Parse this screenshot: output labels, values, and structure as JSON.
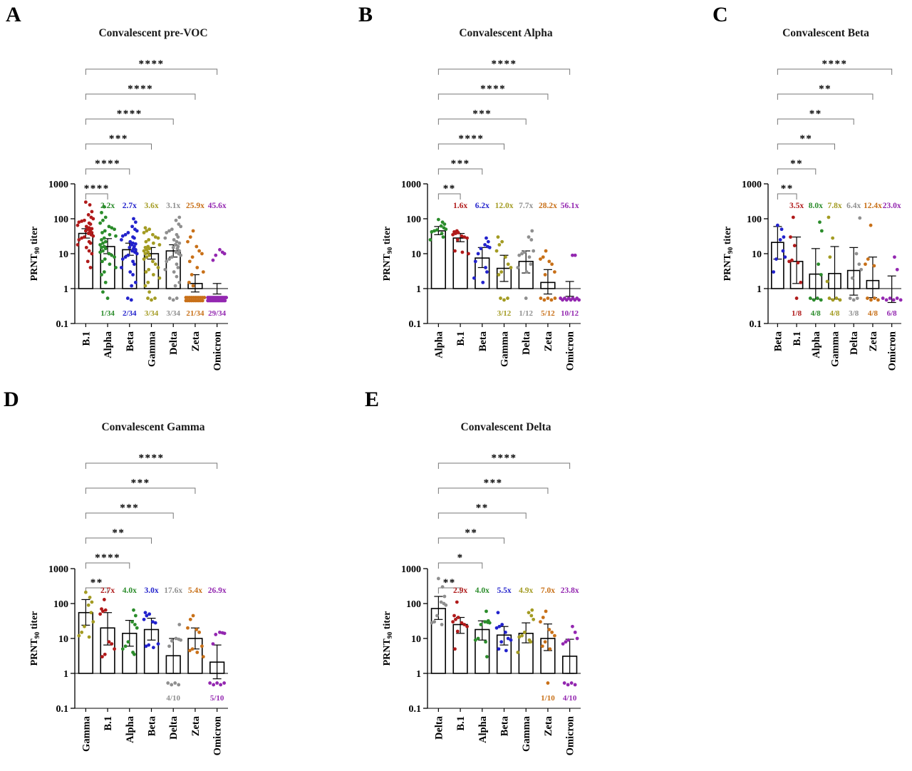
{
  "colors": {
    "B.1": "#b01a1a",
    "Alpha": "#2b8c2b",
    "Beta": "#2222cc",
    "Gamma": "#a39b22",
    "Delta": "#8f8f8f",
    "Zeta": "#c87018",
    "Omicron": "#9327b0",
    "bracket": "#777777",
    "axis": "#000000"
  },
  "ylabel": {
    "prefix": "PRNT",
    "sub": "90",
    "suffix": " titer"
  },
  "chart_data": [
    {
      "panel_label": "A",
      "title": "Convalescent pre-VOC",
      "type": "bar",
      "yscale": "log10",
      "ylim": [
        0.1,
        1000
      ],
      "yticks": [
        "1000",
        "100",
        "10",
        "1",
        "0.1"
      ],
      "n_sera": 34,
      "categories": [
        "B.1",
        "Alpha",
        "Beta",
        "Gamma",
        "Delta",
        "Zeta",
        "Omicron"
      ],
      "bar_means": [
        38,
        16,
        13,
        10,
        12,
        1.4,
        1.0
      ],
      "err_low": [
        28,
        10,
        9,
        7,
        8,
        0.8,
        0.7
      ],
      "err_high": [
        52,
        27,
        20,
        15,
        18,
        2.5,
        1.4
      ],
      "fold_change": [
        "",
        "2.2x",
        "2.7x",
        "3.6x",
        "3.1x",
        "25.9x",
        "45.6x"
      ],
      "below_detection": [
        "",
        "1/34",
        "2/34",
        "3/34",
        "3/34",
        "21/34",
        "29/34"
      ],
      "significance_bottom_to_top": [
        "****",
        "****",
        "***",
        "****",
        "****",
        "****"
      ],
      "points": [
        [
          300,
          250,
          160,
          130,
          110,
          100,
          90,
          85,
          80,
          75,
          70,
          65,
          60,
          55,
          52,
          50,
          48,
          45,
          42,
          40,
          38,
          35,
          32,
          30,
          28,
          25,
          22,
          20,
          18,
          15,
          12,
          10,
          6,
          4
        ],
        [
          220,
          150,
          110,
          90,
          75,
          60,
          55,
          50,
          45,
          40,
          35,
          32,
          28,
          25,
          22,
          20,
          18,
          16,
          15,
          14,
          12,
          11,
          10,
          9,
          8,
          7,
          6,
          5,
          4,
          3,
          2.5,
          1.5,
          0.8,
          0.5
        ],
        [
          100,
          80,
          60,
          50,
          45,
          40,
          35,
          32,
          30,
          28,
          25,
          22,
          20,
          19,
          18,
          16,
          15,
          14,
          13,
          12,
          11,
          10,
          9,
          8,
          7,
          6,
          5,
          4,
          3,
          2.5,
          1.5,
          1.2,
          0.5,
          0.5
        ],
        [
          55,
          50,
          45,
          40,
          35,
          30,
          28,
          25,
          22,
          20,
          18,
          16,
          15,
          14,
          13,
          12,
          11,
          10,
          9,
          8,
          7,
          6,
          5,
          4,
          3.5,
          3,
          2.5,
          2,
          1.5,
          1.2,
          0.8,
          0.5,
          0.5,
          0.5
        ],
        [
          110,
          90,
          70,
          60,
          50,
          45,
          40,
          35,
          30,
          28,
          25,
          22,
          20,
          18,
          16,
          15,
          14,
          12,
          11,
          10,
          9,
          8,
          7,
          6,
          5,
          4,
          3.5,
          3,
          2.2,
          1.5,
          1.2,
          0.5,
          0.5,
          0.5
        ],
        [
          45,
          30,
          22,
          16,
          12,
          10,
          8,
          6,
          4,
          3,
          2.5,
          1.5,
          1.2,
          0.5,
          0.5,
          0.5,
          0.5,
          0.5,
          0.5,
          0.5,
          0.5,
          0.5,
          0.5,
          0.5,
          0.5,
          0.5,
          0.5,
          0.5,
          0.5,
          0.5,
          0.5,
          0.5,
          0.5,
          0.5
        ],
        [
          13,
          11,
          10,
          9,
          6.5,
          0.5,
          0.5,
          0.5,
          0.5,
          0.5,
          0.5,
          0.5,
          0.5,
          0.5,
          0.5,
          0.5,
          0.5,
          0.5,
          0.5,
          0.5,
          0.5,
          0.5,
          0.5,
          0.5,
          0.5,
          0.5,
          0.5,
          0.5,
          0.5,
          0.5,
          0.5,
          0.5,
          0.5,
          0.5
        ]
      ]
    },
    {
      "panel_label": "B",
      "title": "Convalescent Alpha",
      "type": "bar",
      "yscale": "log10",
      "ylim": [
        0.1,
        1000
      ],
      "yticks": [
        "1000",
        "100",
        "10",
        "1",
        "0.1"
      ],
      "n_sera": 12,
      "categories": [
        "Alpha",
        "B.1",
        "Beta",
        "Gamma",
        "Delta",
        "Zeta",
        "Omicron"
      ],
      "bar_means": [
        45,
        28,
        7.5,
        3.8,
        6,
        1.5,
        1.0
      ],
      "err_low": [
        35,
        22,
        4,
        1.6,
        2.8,
        0.7,
        0.6
      ],
      "err_high": [
        60,
        38,
        15,
        9,
        12,
        3.5,
        1.6
      ],
      "fold_change": [
        "",
        "1.6x",
        "6.2x",
        "12.0x",
        "7.7x",
        "28.2x",
        "56.1x"
      ],
      "below_detection": [
        "",
        "",
        "",
        "3/12",
        "1/12",
        "5/12",
        "10/12"
      ],
      "significance_bottom_to_top": [
        "**",
        "***",
        "****",
        "***",
        "****",
        "****"
      ],
      "points": [
        [
          95,
          80,
          70,
          62,
          55,
          50,
          48,
          45,
          42,
          38,
          30,
          25
        ],
        [
          45,
          42,
          40,
          38,
          35,
          32,
          30,
          28,
          25,
          12,
          11,
          10
        ],
        [
          28,
          22,
          18,
          16,
          15,
          14,
          10,
          6,
          4,
          3,
          2,
          1.5
        ],
        [
          30,
          22,
          18,
          12,
          8,
          5,
          4,
          3,
          2.5,
          0.5,
          0.5,
          0.5
        ],
        [
          45,
          30,
          25,
          12,
          11,
          10,
          9,
          8,
          5,
          4,
          3,
          0.5
        ],
        [
          12,
          8,
          7,
          6,
          5,
          3,
          2.5,
          0.5,
          0.5,
          0.5,
          0.5,
          0.5
        ],
        [
          9,
          9,
          0.5,
          0.5,
          0.5,
          0.5,
          0.5,
          0.5,
          0.5,
          0.5,
          0.5,
          0.5
        ]
      ]
    },
    {
      "panel_label": "C",
      "title": "Convalescent Beta",
      "type": "bar",
      "yscale": "log10",
      "ylim": [
        0.1,
        1000
      ],
      "yticks": [
        "1000",
        "100",
        "10",
        "1",
        "0.1"
      ],
      "n_sera": 8,
      "categories": [
        "Beta",
        "B.1",
        "Alpha",
        "Gamma",
        "Delta",
        "Zeta",
        "Omicron"
      ],
      "bar_means": [
        21,
        6,
        2.6,
        2.7,
        3.3,
        1.7,
        1.0
      ],
      "err_low": [
        7,
        1.4,
        0.5,
        0.5,
        0.65,
        0.55,
        0.4
      ],
      "err_high": [
        60,
        30,
        14,
        16,
        15,
        8,
        2.3
      ],
      "fold_change": [
        "",
        "3.5x",
        "8.0x",
        "7.8x",
        "6.4x",
        "12.4x",
        "23.0x"
      ],
      "below_detection": [
        "",
        "1/8",
        "4/8",
        "4/8",
        "3/8",
        "4/8",
        "6/8"
      ],
      "significance_bottom_to_top": [
        "**",
        "**",
        "**",
        "**",
        "**",
        "****"
      ],
      "points": [
        [
          65,
          50,
          30,
          25,
          12,
          8,
          7,
          3
        ],
        [
          110,
          30,
          17,
          6.5,
          6,
          5.5,
          1.5,
          0.5
        ],
        [
          80,
          45,
          5,
          2.5,
          0.5,
          0.5,
          0.5,
          0.5
        ],
        [
          110,
          28,
          8,
          1.6,
          0.5,
          0.5,
          0.5,
          0.5
        ],
        [
          105,
          10,
          5,
          3.5,
          2,
          0.5,
          0.5,
          0.5
        ],
        [
          65,
          7,
          5,
          4.5,
          0.5,
          0.5,
          0.5,
          0.5
        ],
        [
          8,
          3.5,
          0.5,
          0.5,
          0.5,
          0.5,
          0.5,
          0.5
        ]
      ]
    },
    {
      "panel_label": "D",
      "title": "Convalescent Gamma",
      "type": "bar",
      "yscale": "log10",
      "ylim": [
        0.1,
        1000
      ],
      "yticks": [
        "1000",
        "100",
        "10",
        "1",
        "0.1"
      ],
      "n_sera": 10,
      "categories": [
        "Gamma",
        "B.1",
        "Alpha",
        "Beta",
        "Delta",
        "Zeta",
        "Omicron"
      ],
      "bar_means": [
        55,
        20,
        14,
        18,
        3.2,
        10,
        2.1
      ],
      "err_low": [
        24,
        6.5,
        6,
        9,
        1.0,
        5,
        0.7
      ],
      "err_high": [
        130,
        55,
        33,
        38,
        10,
        20,
        6.5
      ],
      "fold_change": [
        "",
        "2.7x",
        "4.0x",
        "3.0x",
        "17.6x",
        "5.4x",
        "26.9x"
      ],
      "below_detection": [
        "",
        "",
        "",
        "",
        "4/10",
        "",
        "5/10"
      ],
      "significance_bottom_to_top": [
        "**",
        "****",
        "**",
        "***",
        "***",
        "****"
      ],
      "points": [
        [
          210,
          150,
          110,
          90,
          55,
          30,
          22,
          15,
          12,
          11
        ],
        [
          130,
          70,
          65,
          60,
          50,
          8,
          7,
          5,
          3.5,
          3
        ],
        [
          65,
          45,
          30,
          25,
          20,
          8,
          6,
          5,
          4,
          3.5
        ],
        [
          55,
          50,
          45,
          35,
          30,
          28,
          7,
          6.5,
          6,
          5.5
        ],
        [
          25,
          10,
          9.5,
          9,
          8.5,
          6,
          0.5,
          0.5,
          0.5,
          0.5
        ],
        [
          45,
          35,
          20,
          18,
          15,
          6,
          5,
          4.5,
          4,
          3
        ],
        [
          15,
          14.5,
          14,
          13,
          7,
          0.5,
          0.5,
          0.5,
          0.5,
          0.5
        ]
      ]
    },
    {
      "panel_label": "E",
      "title": "Convalescent Delta",
      "type": "bar",
      "yscale": "log10",
      "ylim": [
        0.1,
        1000
      ],
      "yticks": [
        "1000",
        "100",
        "10",
        "1",
        "0.1"
      ],
      "n_sera": 10,
      "categories": [
        "Delta",
        "B.1",
        "Alpha",
        "Beta",
        "Gamma",
        "Zeta",
        "Omicron"
      ],
      "bar_means": [
        72,
        25,
        18,
        12.5,
        14,
        10,
        3.1
      ],
      "err_low": [
        35,
        14,
        9,
        6.5,
        7.5,
        4.5,
        1.0
      ],
      "err_high": [
        160,
        40,
        32,
        22,
        28,
        26,
        9.5
      ],
      "fold_change": [
        "",
        "2.9x",
        "4.0x",
        "5.5x",
        "4.9x",
        "7.0x",
        "23.8x"
      ],
      "below_detection": [
        "",
        "",
        "",
        "",
        "",
        "1/10",
        "4/10"
      ],
      "significance_bottom_to_top": [
        "**",
        "*",
        "**",
        "**",
        "***",
        "****"
      ],
      "points": [
        [
          520,
          300,
          160,
          110,
          100,
          90,
          45,
          30,
          28,
          25
        ],
        [
          110,
          45,
          40,
          35,
          30,
          28,
          25,
          22,
          16,
          5
        ],
        [
          60,
          32,
          30,
          29,
          28,
          25,
          10,
          9,
          8,
          3
        ],
        [
          55,
          25,
          22,
          20,
          15,
          10,
          9,
          8,
          5,
          4.5
        ],
        [
          65,
          55,
          45,
          35,
          15,
          12,
          11,
          9,
          8,
          4
        ],
        [
          60,
          40,
          30,
          18,
          15,
          12,
          8,
          6,
          5,
          0.5
        ],
        [
          22,
          15,
          10,
          9,
          8,
          7,
          0.5,
          0.5,
          0.5,
          0.5
        ]
      ]
    }
  ]
}
